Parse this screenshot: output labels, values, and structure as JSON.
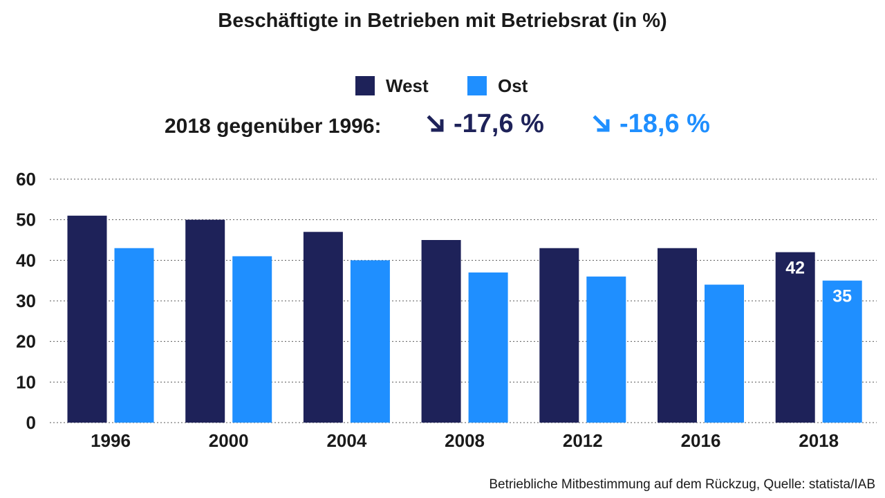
{
  "title": "Beschäftigte in Betrieben mit Betriebsrat (in %)",
  "legend": [
    {
      "label": "West",
      "color": "#1e2259"
    },
    {
      "label": "Ost",
      "color": "#1f8fff"
    }
  ],
  "comparison": {
    "label": "2018 gegenüber 1996:",
    "west_change": "-17,6 %",
    "ost_change": "-18,6 %",
    "arrow_icon": "arrow-down-right-icon"
  },
  "source": "Betriebliche Mitbestimmung auf dem Rückzug, Quelle: statista/IAB",
  "chart_data": {
    "type": "bar",
    "title": "Beschäftigte in Betrieben mit Betriebsrat (in %)",
    "categories": [
      "1996",
      "2000",
      "2004",
      "2008",
      "2012",
      "2016",
      "2018"
    ],
    "series": [
      {
        "name": "West",
        "color": "#1e2259",
        "values": [
          51,
          50,
          47,
          45,
          43,
          43,
          42
        ]
      },
      {
        "name": "Ost",
        "color": "#1f8fff",
        "values": [
          43,
          41,
          40,
          37,
          36,
          34,
          35
        ]
      }
    ],
    "data_labels": [
      {
        "series": "West",
        "category": "2018",
        "text": "42"
      },
      {
        "series": "Ost",
        "category": "2018",
        "text": "35"
      }
    ],
    "yticks": [
      "0",
      "10",
      "20",
      "30",
      "40",
      "50",
      "60"
    ],
    "ylim": [
      0,
      60
    ],
    "grid": true,
    "grid_style": "dotted",
    "legend_position": "top-center"
  }
}
